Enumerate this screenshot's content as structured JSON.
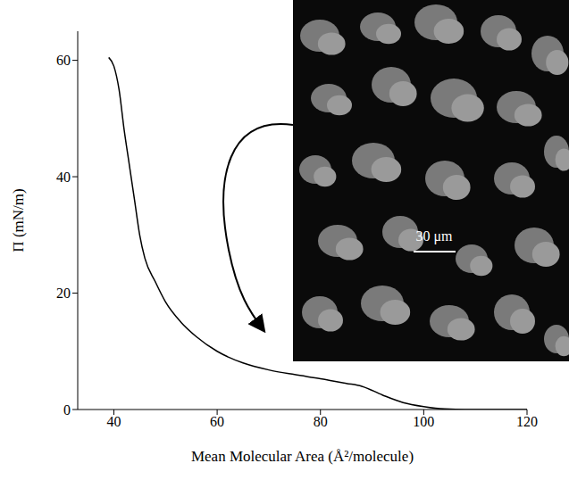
{
  "chart_data": {
    "type": "line",
    "x_label": "Mean Molecular Area (Å²/molecule)",
    "y_label": "Π (mN/m)",
    "x": [
      39,
      40,
      41,
      42,
      43,
      44,
      45,
      46,
      48,
      50,
      53,
      56,
      60,
      65,
      70,
      75,
      80,
      85,
      88,
      92,
      96,
      100,
      104,
      110,
      120
    ],
    "values": [
      60.5,
      59,
      55,
      48,
      42,
      36,
      30,
      26,
      22,
      18.5,
      15,
      12.5,
      10,
      8,
      6.8,
      6,
      5.3,
      4.5,
      4,
      2.5,
      1.2,
      0.5,
      0.1,
      0,
      0
    ],
    "color": "#000000",
    "xlim": [
      33,
      120
    ],
    "ylim": [
      0,
      65
    ],
    "xticks": [
      40,
      60,
      80,
      100,
      120
    ],
    "yticks": [
      0,
      20,
      40,
      60
    ],
    "grid": false,
    "inset_scale_bar_label": "30 μm"
  }
}
